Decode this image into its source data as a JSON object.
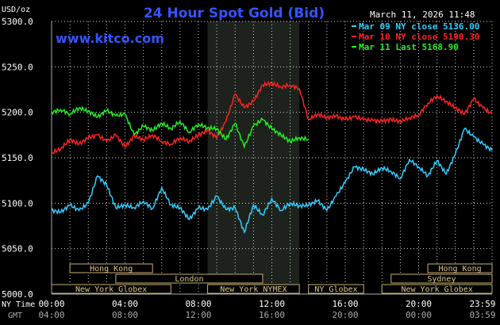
{
  "chart_data": {
    "type": "line",
    "title": "24 Hour Spot Gold (Bid)",
    "date": "March 11, 2026 11:48",
    "source": "www.kitco.com",
    "ylabel": "USD/oz",
    "ylim": [
      5000,
      5300
    ],
    "yticks": [
      "5300.0",
      "5250.0",
      "5200.0",
      "5150.0",
      "5100.0",
      "5050.0",
      "5000.0"
    ],
    "ytick_values": [
      5300,
      5250,
      5200,
      5150,
      5100,
      5050,
      5000
    ],
    "xlim": [
      0,
      24
    ],
    "x_label_ny": "NY Time",
    "x_label_gmt": "GMT",
    "xticks_ny": [
      "00:00",
      "04:00",
      "08:00",
      "12:00",
      "16:00",
      "20:00",
      "23:59"
    ],
    "xticks_gmt": [
      "04:00",
      "08:00",
      "12:00",
      "16:00",
      "20:00",
      "00:00",
      "03:59"
    ],
    "xtick_hours": [
      0,
      4,
      8,
      12,
      16,
      20,
      24
    ],
    "highlight_hours": [
      8.5,
      13.5
    ],
    "legend": [
      {
        "label": "Mar 09 NY close 5136.00",
        "color": "#33ccff"
      },
      {
        "label": "Mar 10 NY close 5190.30",
        "color": "#ff2222"
      },
      {
        "label": "Mar 11 Last 5168.90",
        "color": "#22ee22"
      }
    ],
    "series": [
      {
        "name": "Mar 09 NY close 5136.00",
        "color": "#33ccff",
        "x": [
          0,
          0.5,
          1,
          1.5,
          2,
          2.5,
          3,
          3.5,
          4,
          4.5,
          5,
          5.5,
          6,
          6.5,
          7,
          7.5,
          8,
          8.5,
          9,
          9.5,
          10,
          10.5,
          11,
          11.5,
          12,
          12.5,
          13,
          13.5,
          14,
          14.5,
          15,
          15.5,
          16,
          16.5,
          17,
          17.5,
          18,
          18.5,
          19,
          19.5,
          20,
          20.5,
          21,
          21.5,
          22,
          22.5,
          23,
          23.5,
          24
        ],
        "y": [
          5092,
          5090,
          5098,
          5092,
          5100,
          5130,
          5120,
          5095,
          5098,
          5095,
          5102,
          5094,
          5117,
          5098,
          5095,
          5082,
          5095,
          5093,
          5108,
          5093,
          5095,
          5068,
          5098,
          5087,
          5105,
          5092,
          5100,
          5097,
          5098,
          5103,
          5092,
          5108,
          5123,
          5140,
          5137,
          5132,
          5139,
          5135,
          5127,
          5148,
          5140,
          5130,
          5147,
          5132,
          5154,
          5182,
          5173,
          5165,
          5158
        ]
      },
      {
        "name": "Mar 10 NY close 5190.30",
        "color": "#ff2222",
        "x": [
          0,
          0.5,
          1,
          1.5,
          2,
          2.5,
          3,
          3.5,
          4,
          4.5,
          5,
          5.5,
          6,
          6.5,
          7,
          7.5,
          8,
          8.5,
          9,
          9.5,
          10,
          10.5,
          11,
          11.5,
          12,
          12.5,
          13,
          13.5,
          14,
          14.5,
          15,
          15.5,
          16,
          16.5,
          17,
          17.5,
          18,
          18.5,
          19,
          19.5,
          20,
          20.5,
          21,
          21.5,
          22,
          22.5,
          23,
          23.5,
          24
        ],
        "y": [
          5155,
          5160,
          5170,
          5165,
          5172,
          5175,
          5168,
          5175,
          5162,
          5174,
          5170,
          5175,
          5168,
          5165,
          5172,
          5168,
          5175,
          5180,
          5172,
          5190,
          5220,
          5205,
          5212,
          5230,
          5232,
          5228,
          5230,
          5226,
          5192,
          5198,
          5194,
          5196,
          5192,
          5195,
          5192,
          5191,
          5190,
          5192,
          5190,
          5194,
          5197,
          5210,
          5218,
          5212,
          5205,
          5198,
          5215,
          5205,
          5198
        ]
      },
      {
        "name": "Mar 11 Last 5168.90",
        "color": "#22ee22",
        "x": [
          0,
          0.5,
          1,
          1.5,
          2,
          2.5,
          3,
          3.5,
          4,
          4.5,
          5,
          5.5,
          6,
          6.5,
          7,
          7.5,
          8,
          8.5,
          9,
          9.5,
          10,
          10.5,
          11,
          11.5,
          12,
          12.5,
          13,
          13.5,
          14
        ],
        "y": [
          5200,
          5203,
          5198,
          5205,
          5201,
          5195,
          5202,
          5196,
          5198,
          5175,
          5185,
          5180,
          5188,
          5182,
          5190,
          5178,
          5187,
          5183,
          5182,
          5170,
          5188,
          5162,
          5185,
          5192,
          5182,
          5175,
          5168,
          5172,
          5170
        ]
      }
    ],
    "sessions": [
      {
        "label": "Hong Kong",
        "row": 0,
        "start": 1,
        "end": 5.5
      },
      {
        "label": "London",
        "row": 1,
        "start": 3.5,
        "end": 11.5
      },
      {
        "label": "New York Globex",
        "row": 2,
        "start": 0,
        "end": 6.5
      },
      {
        "label": "New York NYMEX",
        "row": 2,
        "start": 8.5,
        "end": 13.5
      },
      {
        "label": "NY Globex",
        "row": 2,
        "start": 14,
        "end": 17
      },
      {
        "label": "Hong Kong",
        "row": 0,
        "start": 20.5,
        "end": 24
      },
      {
        "label": "Sydney",
        "row": 1,
        "start": 18.5,
        "end": 24
      },
      {
        "label": "New York Globex",
        "row": 2,
        "start": 18,
        "end": 24
      }
    ]
  }
}
